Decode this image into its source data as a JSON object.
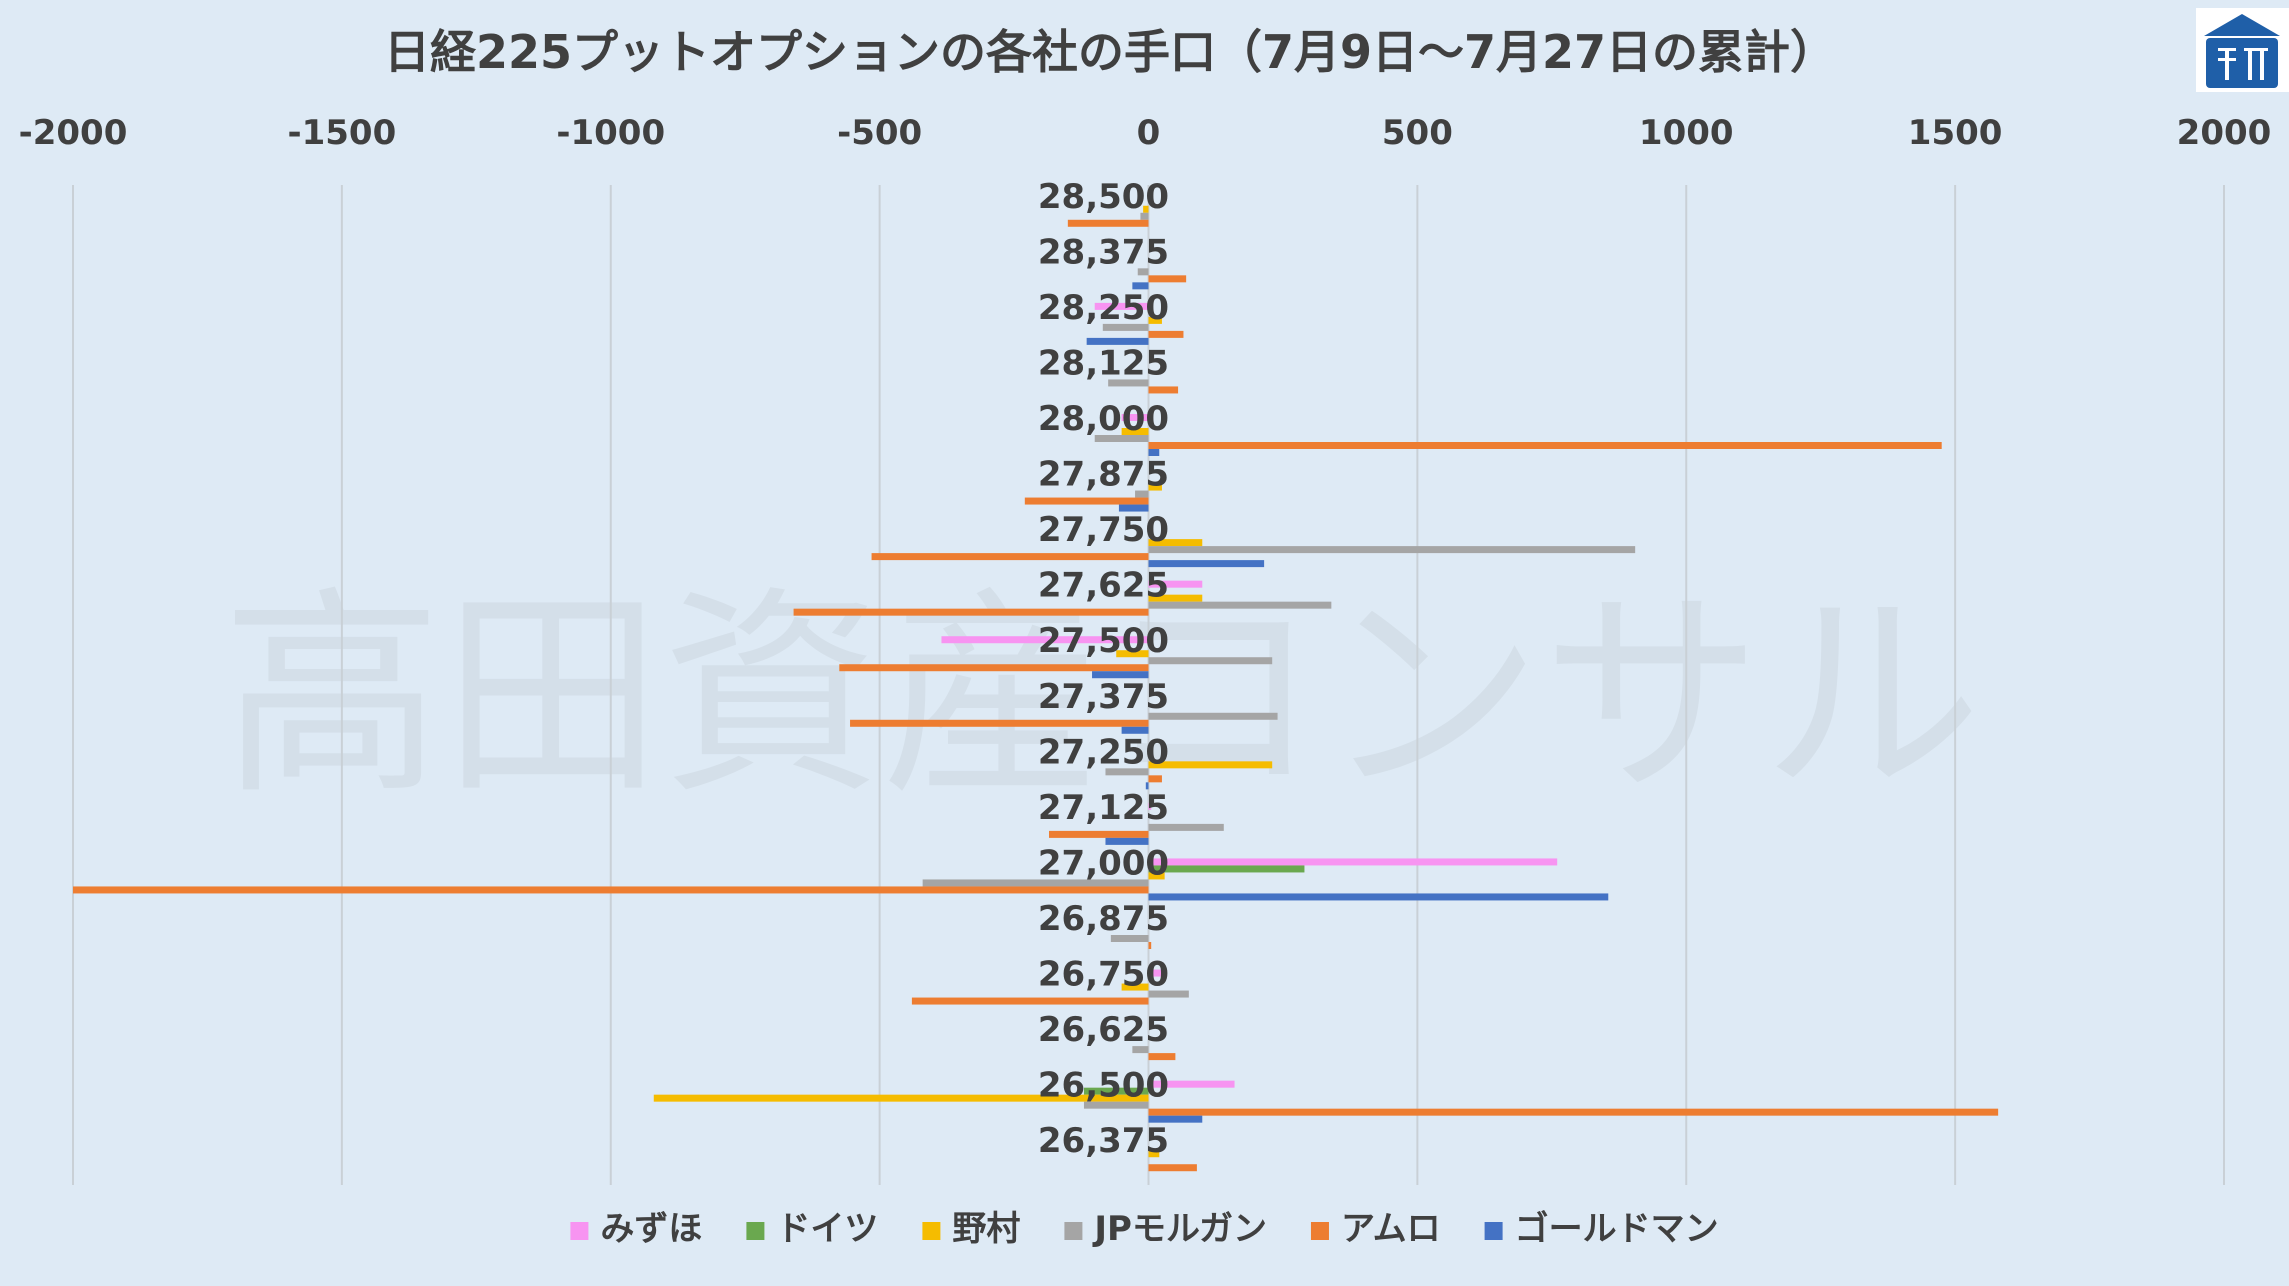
{
  "watermark": "高田資産コンサル",
  "colors": {
    "background": "#deeaf5",
    "grid": "#c9d0d6",
    "text": "#404040",
    "logo": "#1f5fa8"
  },
  "chart_data": {
    "type": "bar",
    "orientation": "horizontal",
    "title": "日経225プットオプションの各社の手口（7月9日～7月27日の累計）",
    "xlim": [
      -2000,
      2000
    ],
    "xticks": [
      -2000,
      -1500,
      -1000,
      -500,
      0,
      500,
      1000,
      1500,
      2000
    ],
    "xtick_labels": [
      "-2000",
      "-1500",
      "-1000",
      "-500",
      "0",
      "500",
      "1000",
      "1500",
      "2000"
    ],
    "axis_position": "top",
    "grid": true,
    "legend_position": "bottom",
    "categories": [
      "28,500",
      "28,375",
      "28,250",
      "28,125",
      "28,000",
      "27,875",
      "27,750",
      "27,625",
      "27,500",
      "27,375",
      "27,250",
      "27,125",
      "27,000",
      "26,875",
      "26,750",
      "26,625",
      "26,500",
      "26,375"
    ],
    "series": [
      {
        "name": "みずほ",
        "color": "#f794f1",
        "values": [
          0,
          0,
          -100,
          0,
          -50,
          0,
          0,
          100,
          -385,
          0,
          0,
          5,
          760,
          0,
          30,
          0,
          160,
          0
        ]
      },
      {
        "name": "ドイツ",
        "color": "#6aa84f",
        "values": [
          0,
          0,
          0,
          0,
          0,
          0,
          0,
          0,
          0,
          0,
          0,
          0,
          290,
          0,
          0,
          0,
          -120,
          0
        ]
      },
      {
        "name": "野村",
        "color": "#f5bc00",
        "values": [
          -10,
          0,
          25,
          0,
          -50,
          25,
          100,
          100,
          -60,
          0,
          230,
          0,
          30,
          0,
          -50,
          0,
          -920,
          20
        ]
      },
      {
        "name": "JPモルガン",
        "color": "#a5a5a5",
        "values": [
          -15,
          -20,
          -85,
          -75,
          -100,
          -25,
          905,
          340,
          230,
          240,
          -80,
          140,
          -420,
          -70,
          75,
          -30,
          -120,
          0
        ]
      },
      {
        "name": "アムロ",
        "color": "#ed7d31",
        "values": [
          -150,
          70,
          65,
          55,
          1475,
          -230,
          -515,
          -660,
          -575,
          -555,
          25,
          -185,
          -2000,
          5,
          -440,
          50,
          1580,
          90
        ]
      },
      {
        "name": "ゴールドマン",
        "color": "#4472c4",
        "values": [
          0,
          -30,
          -115,
          0,
          20,
          -55,
          215,
          0,
          -105,
          -50,
          -5,
          -80,
          855,
          0,
          0,
          0,
          100,
          0
        ]
      }
    ]
  }
}
